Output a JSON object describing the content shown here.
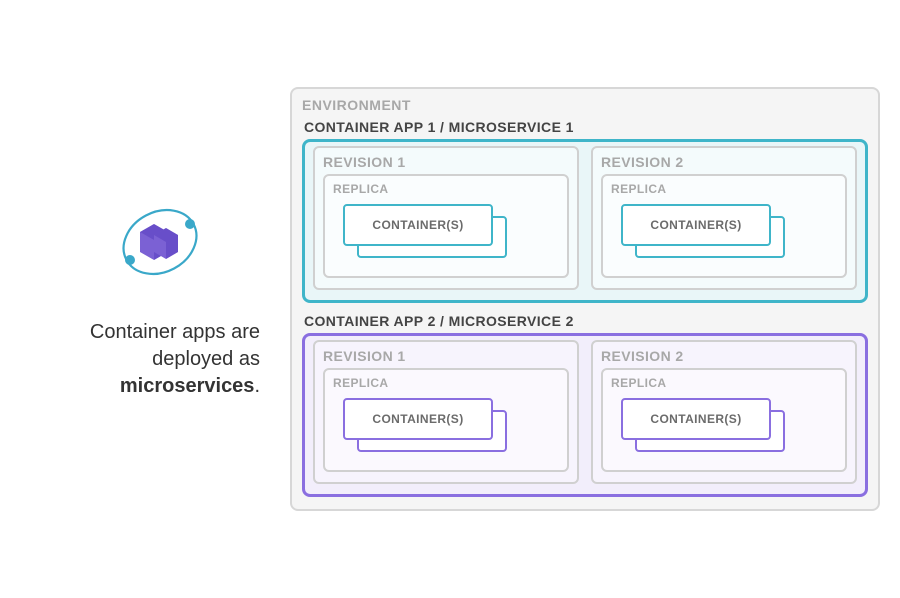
{
  "caption": {
    "line1": "Container apps are",
    "line2": "deployed as",
    "line3_bold": "microservices",
    "line3_suffix": "."
  },
  "icon": {
    "container_fill": "#7b61d4",
    "container_dark": "#5a3fc0",
    "orbit_color": "#3aa8c9",
    "dot_color": "#3aa8c9"
  },
  "environment": {
    "label": "ENVIRONMENT",
    "border_color": "#d7d7d7",
    "label_color": "#a8a8a8",
    "bg": "#f5f5f5"
  },
  "apps": [
    {
      "label": "CONTAINER APP 1 / MICROSERVICE 1",
      "border_color": "#3fb5c9",
      "bg": "#e9f6f8",
      "rev_border": "#d0d0d0",
      "rev_bg": "#f4fbfc",
      "rev_label_color": "#a8a8a8",
      "rep_border": "#d0d0d0",
      "rep_bg": "#fafdfe",
      "rep_label_color": "#a8a8a8",
      "con_border": "#3fb5c9",
      "con_bg": "#ffffff",
      "con_text_color": "#6b6b6b",
      "revisions": [
        {
          "label": "REVISION 1",
          "replica_label": "REPLICA",
          "container_label": "CONTAINER(S)"
        },
        {
          "label": "REVISION 2",
          "replica_label": "REPLICA",
          "container_label": "CONTAINER(S)"
        }
      ]
    },
    {
      "label": "CONTAINER APP 2 / MICROSERVICE 2",
      "border_color": "#8a6fe0",
      "bg": "#f2eefb",
      "rev_border": "#d0d0d0",
      "rev_bg": "#f7f4fd",
      "rev_label_color": "#a8a8a8",
      "rep_border": "#d0d0d0",
      "rep_bg": "#fbf9fe",
      "rep_label_color": "#a8a8a8",
      "con_border": "#8a6fe0",
      "con_bg": "#ffffff",
      "con_text_color": "#6b6b6b",
      "revisions": [
        {
          "label": "REVISION 1",
          "replica_label": "REPLICA",
          "container_label": "CONTAINER(S)"
        },
        {
          "label": "REVISION 2",
          "replica_label": "REPLICA",
          "container_label": "CONTAINER(S)"
        }
      ]
    }
  ]
}
